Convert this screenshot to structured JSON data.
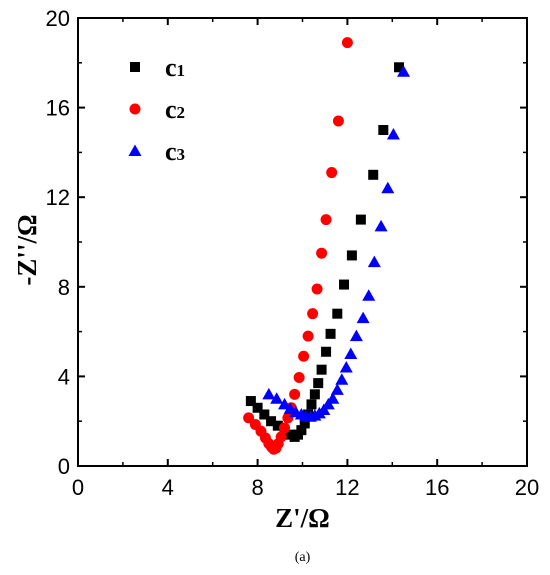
{
  "chart_data": {
    "type": "scatter",
    "xlabel": "Z'/Ω",
    "ylabel": "-Z''/Ω",
    "xlim": [
      0,
      20
    ],
    "ylim": [
      0,
      20
    ],
    "x_ticks": [
      0,
      4,
      8,
      12,
      16,
      20
    ],
    "y_ticks": [
      0,
      4,
      8,
      12,
      16,
      20
    ],
    "x_tick_labels": [
      "0",
      "4",
      "8",
      "12",
      "16",
      "20"
    ],
    "y_tick_labels": [
      "0",
      "4",
      "8",
      "12",
      "16",
      "20"
    ],
    "legend_position": "top-left",
    "grid": false,
    "caption": "(a)",
    "series": [
      {
        "name": "c",
        "subscript": "1",
        "marker": "square",
        "color": "#000000",
        "points": [
          [
            7.7,
            2.9
          ],
          [
            8.0,
            2.6
          ],
          [
            8.3,
            2.3
          ],
          [
            8.6,
            2.0
          ],
          [
            8.9,
            1.8
          ],
          [
            9.2,
            1.55
          ],
          [
            9.45,
            1.4
          ],
          [
            9.65,
            1.3
          ],
          [
            9.8,
            1.4
          ],
          [
            9.95,
            1.6
          ],
          [
            10.1,
            1.9
          ],
          [
            10.25,
            2.3
          ],
          [
            10.4,
            2.75
          ],
          [
            10.55,
            3.2
          ],
          [
            10.7,
            3.7
          ],
          [
            10.85,
            4.3
          ],
          [
            11.05,
            5.1
          ],
          [
            11.25,
            5.9
          ],
          [
            11.55,
            6.8
          ],
          [
            11.85,
            8.1
          ],
          [
            12.2,
            9.4
          ],
          [
            12.6,
            11.0
          ],
          [
            13.15,
            13.0
          ],
          [
            13.6,
            15.0
          ],
          [
            14.3,
            17.8
          ]
        ]
      },
      {
        "name": "c",
        "subscript": "2",
        "marker": "circle",
        "color": "#ff0000",
        "points": [
          [
            7.6,
            2.15
          ],
          [
            7.9,
            1.85
          ],
          [
            8.15,
            1.55
          ],
          [
            8.35,
            1.25
          ],
          [
            8.5,
            1.0
          ],
          [
            8.62,
            0.85
          ],
          [
            8.72,
            0.75
          ],
          [
            8.82,
            0.8
          ],
          [
            8.92,
            1.0
          ],
          [
            9.05,
            1.3
          ],
          [
            9.2,
            1.7
          ],
          [
            9.35,
            2.15
          ],
          [
            9.5,
            2.6
          ],
          [
            9.65,
            3.2
          ],
          [
            9.85,
            3.95
          ],
          [
            10.05,
            4.9
          ],
          [
            10.25,
            5.8
          ],
          [
            10.45,
            6.8
          ],
          [
            10.65,
            7.9
          ],
          [
            10.85,
            9.5
          ],
          [
            11.05,
            11.0
          ],
          [
            11.3,
            13.1
          ],
          [
            11.6,
            15.4
          ],
          [
            12.0,
            18.9
          ]
        ]
      },
      {
        "name": "c",
        "subscript": "3",
        "marker": "triangle",
        "color": "#0000ff",
        "points": [
          [
            8.5,
            3.2
          ],
          [
            8.85,
            3.0
          ],
          [
            9.2,
            2.75
          ],
          [
            9.45,
            2.55
          ],
          [
            9.7,
            2.4
          ],
          [
            9.95,
            2.3
          ],
          [
            10.15,
            2.22
          ],
          [
            10.35,
            2.2
          ],
          [
            10.55,
            2.25
          ],
          [
            10.75,
            2.35
          ],
          [
            10.95,
            2.5
          ],
          [
            11.15,
            2.75
          ],
          [
            11.35,
            3.0
          ],
          [
            11.55,
            3.4
          ],
          [
            11.75,
            3.85
          ],
          [
            11.95,
            4.4
          ],
          [
            12.15,
            5.0
          ],
          [
            12.4,
            5.8
          ],
          [
            12.7,
            6.6
          ],
          [
            12.95,
            7.6
          ],
          [
            13.2,
            9.1
          ],
          [
            13.5,
            10.7
          ],
          [
            13.8,
            12.4
          ],
          [
            14.05,
            14.8
          ],
          [
            14.5,
            17.6
          ]
        ]
      }
    ]
  }
}
